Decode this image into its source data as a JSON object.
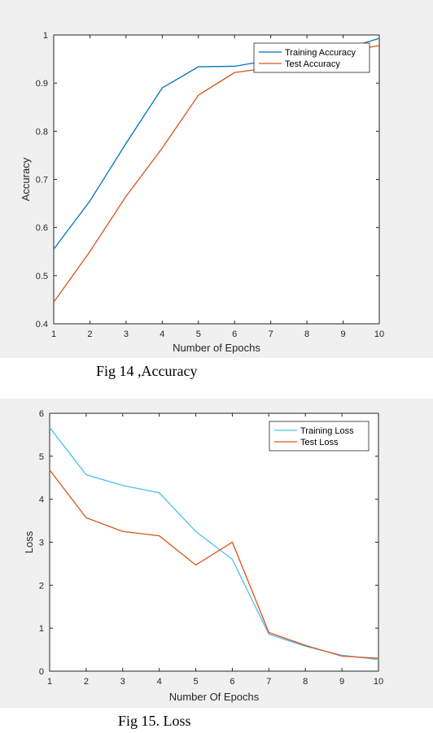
{
  "chart_data": [
    {
      "type": "line",
      "title": "",
      "xlabel": "Number of Epochs",
      "ylabel": "Accuracy",
      "xlim": [
        1,
        10
      ],
      "ylim": [
        0.4,
        1
      ],
      "xticks": [
        1,
        2,
        3,
        4,
        5,
        6,
        7,
        8,
        9,
        10
      ],
      "yticks": [
        0.4,
        0.5,
        0.6,
        0.7,
        0.8,
        0.9,
        1
      ],
      "grid": false,
      "legend_position": "top-right",
      "x": [
        1,
        2,
        3,
        4,
        5,
        6,
        7,
        8,
        9,
        10
      ],
      "series": [
        {
          "name": "Training Accuracy",
          "color": "#0072bd",
          "values": [
            0.555,
            0.655,
            0.775,
            0.89,
            0.934,
            0.935,
            0.948,
            0.955,
            0.97,
            0.993
          ]
        },
        {
          "name": "Test Accuracy",
          "color": "#d95319",
          "values": [
            0.445,
            0.55,
            0.665,
            0.765,
            0.875,
            0.922,
            0.932,
            0.945,
            0.965,
            0.978
          ]
        }
      ],
      "caption": "Fig 14 ,Accuracy"
    },
    {
      "type": "line",
      "title": "",
      "xlabel": "Number Of Epochs",
      "ylabel": "Loss",
      "xlim": [
        1,
        10
      ],
      "ylim": [
        0,
        6
      ],
      "xticks": [
        1,
        2,
        3,
        4,
        5,
        6,
        7,
        8,
        9,
        10
      ],
      "yticks": [
        0,
        1,
        2,
        3,
        4,
        5,
        6
      ],
      "grid": false,
      "legend_position": "top-right",
      "x": [
        1,
        2,
        3,
        4,
        5,
        6,
        7,
        8,
        9,
        10
      ],
      "series": [
        {
          "name": "Training Loss",
          "color": "#4dbeee",
          "values": [
            5.67,
            4.57,
            4.32,
            4.15,
            3.25,
            2.6,
            0.86,
            0.58,
            0.37,
            0.27
          ]
        },
        {
          "name": "Test Loss",
          "color": "#d95319",
          "values": [
            4.68,
            3.57,
            3.25,
            3.15,
            2.47,
            3.0,
            0.9,
            0.6,
            0.35,
            0.3
          ]
        }
      ],
      "caption": "Fig 15. Loss"
    }
  ]
}
